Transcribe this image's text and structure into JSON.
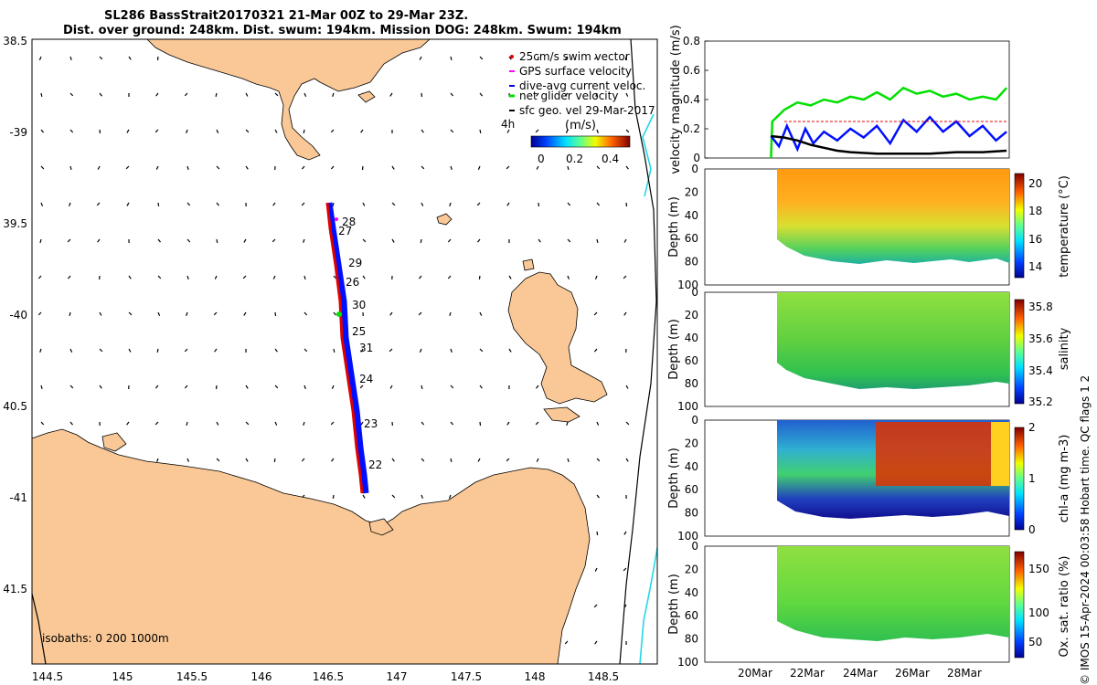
{
  "title": {
    "line1": "SL286 BassStrait20170321 21-Mar 00Z to 29-Mar 23Z.",
    "line2": "Dist. over ground: 248km. Dist. swum: 194km. Mission DOG: 248km. Swum: 194km"
  },
  "map": {
    "lon_ticks": [
      "144.5",
      "145",
      "145.5",
      "146",
      "146.5",
      "147",
      "147.5",
      "148",
      "148.5"
    ],
    "lat_ticks": [
      "38.5",
      "-39",
      "39.5",
      "-40",
      "40.5",
      "-41",
      "41.5"
    ],
    "legend": {
      "items": [
        {
          "label": "25cm/s swim vector",
          "color": "#e00000"
        },
        {
          "label": "GPS surface velocity",
          "color": "#ff00ff"
        },
        {
          "label": "dive-avg current veloc.",
          "color": "#0000e0"
        },
        {
          "label": "net glider velocity",
          "color": "#00e000"
        },
        {
          "label": "sfc geo. vel 29-Mar-2017",
          "color": "#000000"
        }
      ],
      "time_label": "4h",
      "unit_label": "(m/s)",
      "colorbar_ticks": [
        "0",
        "0.2",
        "0.4"
      ]
    },
    "track_day_labels": [
      "28",
      "27",
      "29",
      "26",
      "30",
      "25",
      "31",
      "24",
      "23",
      "22"
    ],
    "isobaths_label": "isobaths: 0   200  1000m",
    "colors": {
      "land": "#f9c896",
      "track_red": "#e00000",
      "track_blue": "#0010ff",
      "isobath_200": "#22d8e8"
    }
  },
  "chart_data": [
    {
      "type": "line",
      "title": "",
      "ylabel": "velocity magnitude (m/s)",
      "ylim": [
        0,
        0.8
      ],
      "yticks": [
        "0",
        "0.2",
        "0.4",
        "0.6",
        "0.8"
      ],
      "x_range_days": [
        18.5,
        30.0
      ],
      "series": [
        {
          "name": "net glider velocity",
          "color": "#00e000",
          "x": [
            21.0,
            21.05,
            21.5,
            22.0,
            22.5,
            23.0,
            23.5,
            24.0,
            24.5,
            25.0,
            25.5,
            26.0,
            26.5,
            27.0,
            27.5,
            28.0,
            28.5,
            29.0,
            29.5,
            29.9
          ],
          "y": [
            0.0,
            0.25,
            0.33,
            0.38,
            0.36,
            0.4,
            0.38,
            0.42,
            0.4,
            0.45,
            0.4,
            0.48,
            0.44,
            0.46,
            0.42,
            0.44,
            0.4,
            0.42,
            0.4,
            0.48
          ]
        },
        {
          "name": "dive-avg current veloc.",
          "color": "#0010ff",
          "x": [
            21.0,
            21.3,
            21.6,
            22.0,
            22.3,
            22.6,
            23.0,
            23.5,
            24.0,
            24.5,
            25.0,
            25.5,
            26.0,
            26.5,
            27.0,
            27.5,
            28.0,
            28.5,
            29.0,
            29.5,
            29.9
          ],
          "y": [
            0.15,
            0.08,
            0.22,
            0.06,
            0.2,
            0.1,
            0.18,
            0.12,
            0.2,
            0.14,
            0.22,
            0.1,
            0.26,
            0.18,
            0.28,
            0.18,
            0.25,
            0.15,
            0.22,
            0.12,
            0.18
          ]
        },
        {
          "name": "sfc geo. vel",
          "color": "#000000",
          "x": [
            21.0,
            21.5,
            22.0,
            22.5,
            23.0,
            23.5,
            24.0,
            25.0,
            26.0,
            27.0,
            28.0,
            29.0,
            29.9
          ],
          "y": [
            0.15,
            0.14,
            0.12,
            0.09,
            0.07,
            0.05,
            0.04,
            0.03,
            0.03,
            0.03,
            0.04,
            0.04,
            0.05
          ]
        },
        {
          "name": "25cm/s swim vector",
          "color": "#e00000",
          "x": [
            21.5,
            29.9
          ],
          "y": [
            0.25,
            0.25
          ]
        }
      ]
    },
    {
      "type": "heatmap",
      "ylabel": "Depth (m)",
      "clabel": "temperature (°C)",
      "ylim": [
        100,
        0
      ],
      "yticks": [
        "0",
        "20",
        "40",
        "60",
        "80",
        "100"
      ],
      "cticks": [
        "14",
        "16",
        "18",
        "20"
      ]
    },
    {
      "type": "heatmap",
      "ylabel": "Depth (m)",
      "clabel": "salinity",
      "ylim": [
        100,
        0
      ],
      "yticks": [
        "0",
        "20",
        "40",
        "60",
        "80",
        "100"
      ],
      "cticks": [
        "35.2",
        "35.4",
        "35.6",
        "35.8"
      ]
    },
    {
      "type": "heatmap",
      "ylabel": "Depth (m)",
      "clabel": "chl-a (mg m-3)",
      "ylim": [
        100,
        0
      ],
      "yticks": [
        "0",
        "20",
        "40",
        "60",
        "80",
        "100"
      ],
      "cticks": [
        "0",
        "1",
        "2"
      ]
    },
    {
      "type": "heatmap",
      "ylabel": "Depth (m)",
      "clabel": "Ox. sat. ratio (%)",
      "ylim": [
        100,
        0
      ],
      "yticks": [
        "0",
        "20",
        "40",
        "60",
        "80",
        "100"
      ],
      "cticks": [
        "50",
        "100",
        "150"
      ],
      "xticks": [
        "20Mar",
        "22Mar",
        "24Mar",
        "26Mar",
        "28Mar"
      ]
    }
  ],
  "side_note": "© IMOS 15-Apr-2024 00:03:58 Hobart time. QC flags 1  2"
}
